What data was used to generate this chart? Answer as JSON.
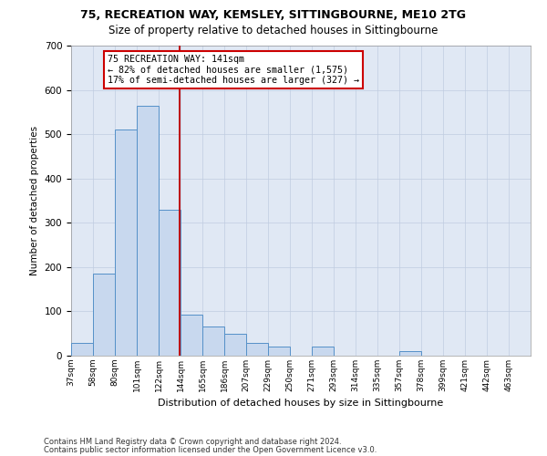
{
  "title1": "75, RECREATION WAY, KEMSLEY, SITTINGBOURNE, ME10 2TG",
  "title2": "Size of property relative to detached houses in Sittingbourne",
  "xlabel": "Distribution of detached houses by size in Sittingbourne",
  "ylabel": "Number of detached properties",
  "footer1": "Contains HM Land Registry data © Crown copyright and database right 2024.",
  "footer2": "Contains public sector information licensed under the Open Government Licence v3.0.",
  "bar_color": "#c8d8ee",
  "bar_edge_color": "#5590c8",
  "bg_color": "#e0e8f4",
  "annotation_line1": "75 RECREATION WAY: 141sqm",
  "annotation_line2": "← 82% of detached houses are smaller (1,575)",
  "annotation_line3": "17% of semi-detached houses are larger (327) →",
  "vline_color": "#bb0000",
  "categories": [
    "37sqm",
    "58sqm",
    "80sqm",
    "101sqm",
    "122sqm",
    "144sqm",
    "165sqm",
    "186sqm",
    "207sqm",
    "229sqm",
    "250sqm",
    "271sqm",
    "293sqm",
    "314sqm",
    "335sqm",
    "357sqm",
    "378sqm",
    "399sqm",
    "421sqm",
    "442sqm",
    "463sqm"
  ],
  "bar_heights": [
    28,
    185,
    510,
    565,
    330,
    92,
    65,
    50,
    28,
    20,
    0,
    20,
    0,
    0,
    0,
    10,
    0,
    0,
    0,
    0,
    0
  ],
  "n_bins": 21,
  "vline_bin": 5,
  "ylim": [
    0,
    700
  ],
  "yticks": [
    0,
    100,
    200,
    300,
    400,
    500,
    600,
    700
  ],
  "annotation_box_color": "#ffffff",
  "annotation_border_color": "#cc0000",
  "grid_color": "#c0cce0",
  "title1_fontsize": 9,
  "title2_fontsize": 8.5
}
